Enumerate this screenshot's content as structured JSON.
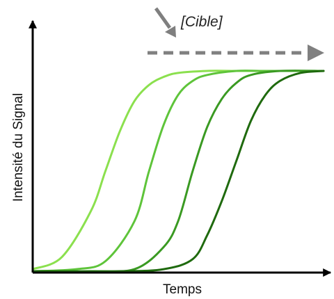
{
  "chart_data": {
    "type": "line",
    "title": "",
    "xlabel": "Temps",
    "ylabel": "Intensité du Signal",
    "xlim": [
      0,
      100
    ],
    "ylim": [
      0,
      100
    ],
    "grid": false,
    "legend": "none",
    "x_ticks": [],
    "y_ticks": [],
    "series": [
      {
        "color": "#8BE04E",
        "x": [
          0,
          10,
          20,
          25,
          30,
          35,
          40,
          45,
          50,
          60,
          70,
          85,
          100
        ],
        "y": [
          1,
          7,
          30,
          50,
          70,
          85,
          93,
          97,
          99,
          100,
          100,
          100,
          100
        ]
      },
      {
        "color": "#5EC43A",
        "x": [
          0,
          15,
          25,
          35,
          40,
          45,
          50,
          55,
          60,
          70,
          80,
          100
        ],
        "y": [
          0,
          1,
          5,
          25,
          50,
          73,
          88,
          95,
          98,
          100,
          100,
          100
        ]
      },
      {
        "color": "#3A9A22",
        "x": [
          0,
          20,
          35,
          45,
          50,
          55,
          60,
          65,
          70,
          75,
          85,
          100
        ],
        "y": [
          0,
          0,
          1,
          12,
          25,
          50,
          72,
          86,
          94,
          98,
          100,
          100
        ]
      },
      {
        "color": "#1F6A0E",
        "x": [
          0,
          30,
          45,
          55,
          60,
          65,
          70,
          75,
          80,
          85,
          92,
          100
        ],
        "y": [
          0,
          0,
          1,
          6,
          18,
          35,
          55,
          75,
          88,
          95,
          99,
          100
        ]
      }
    ],
    "annotation": {
      "text": "[Cible]",
      "arrow_color": "#7F7F7F",
      "dashed_arrow_color": "#808080"
    },
    "axis_color": "#000000"
  }
}
